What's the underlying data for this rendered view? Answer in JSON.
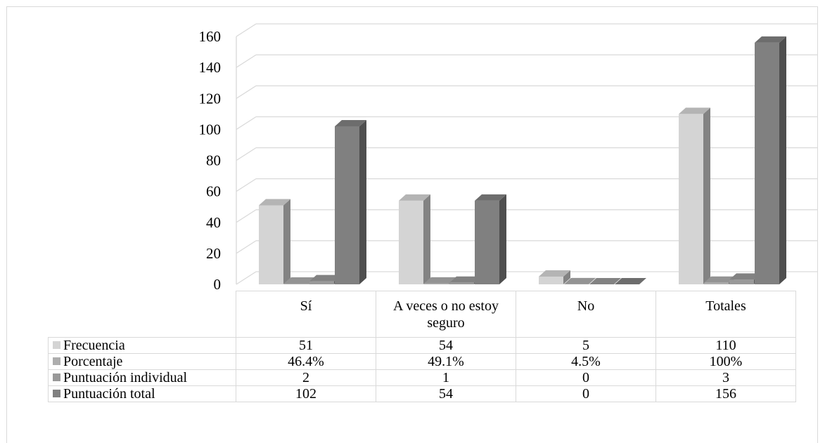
{
  "chart_data": {
    "type": "bar",
    "style": "3d-clustered-column",
    "categories": [
      "Sí",
      "A veces o no estoy seguro",
      "No",
      "Totales"
    ],
    "series": [
      {
        "name": "Frecuencia",
        "values": [
          51,
          54,
          5,
          110
        ],
        "color": "#d4d4d4",
        "labels": [
          "51",
          "54",
          "5",
          "110"
        ]
      },
      {
        "name": "Porcentaje",
        "values": [
          0.464,
          0.491,
          0.045,
          1
        ],
        "color": "#adadad",
        "labels": [
          "46.4%",
          "49.1%",
          "4.5%",
          "100%"
        ]
      },
      {
        "name": "Puntuación individual",
        "values": [
          2,
          1,
          0,
          3
        ],
        "color": "#999999",
        "labels": [
          "2",
          "1",
          "0",
          "3"
        ]
      },
      {
        "name": "Puntuación total",
        "values": [
          102,
          54,
          0,
          156
        ],
        "color": "#808080",
        "labels": [
          "102",
          "54",
          "0",
          "156"
        ]
      }
    ],
    "ylim": [
      0,
      160
    ],
    "yticks": [
      "0",
      "20",
      "40",
      "60",
      "80",
      "100",
      "120",
      "140",
      "160"
    ],
    "grid": true,
    "legend": "data-table"
  }
}
